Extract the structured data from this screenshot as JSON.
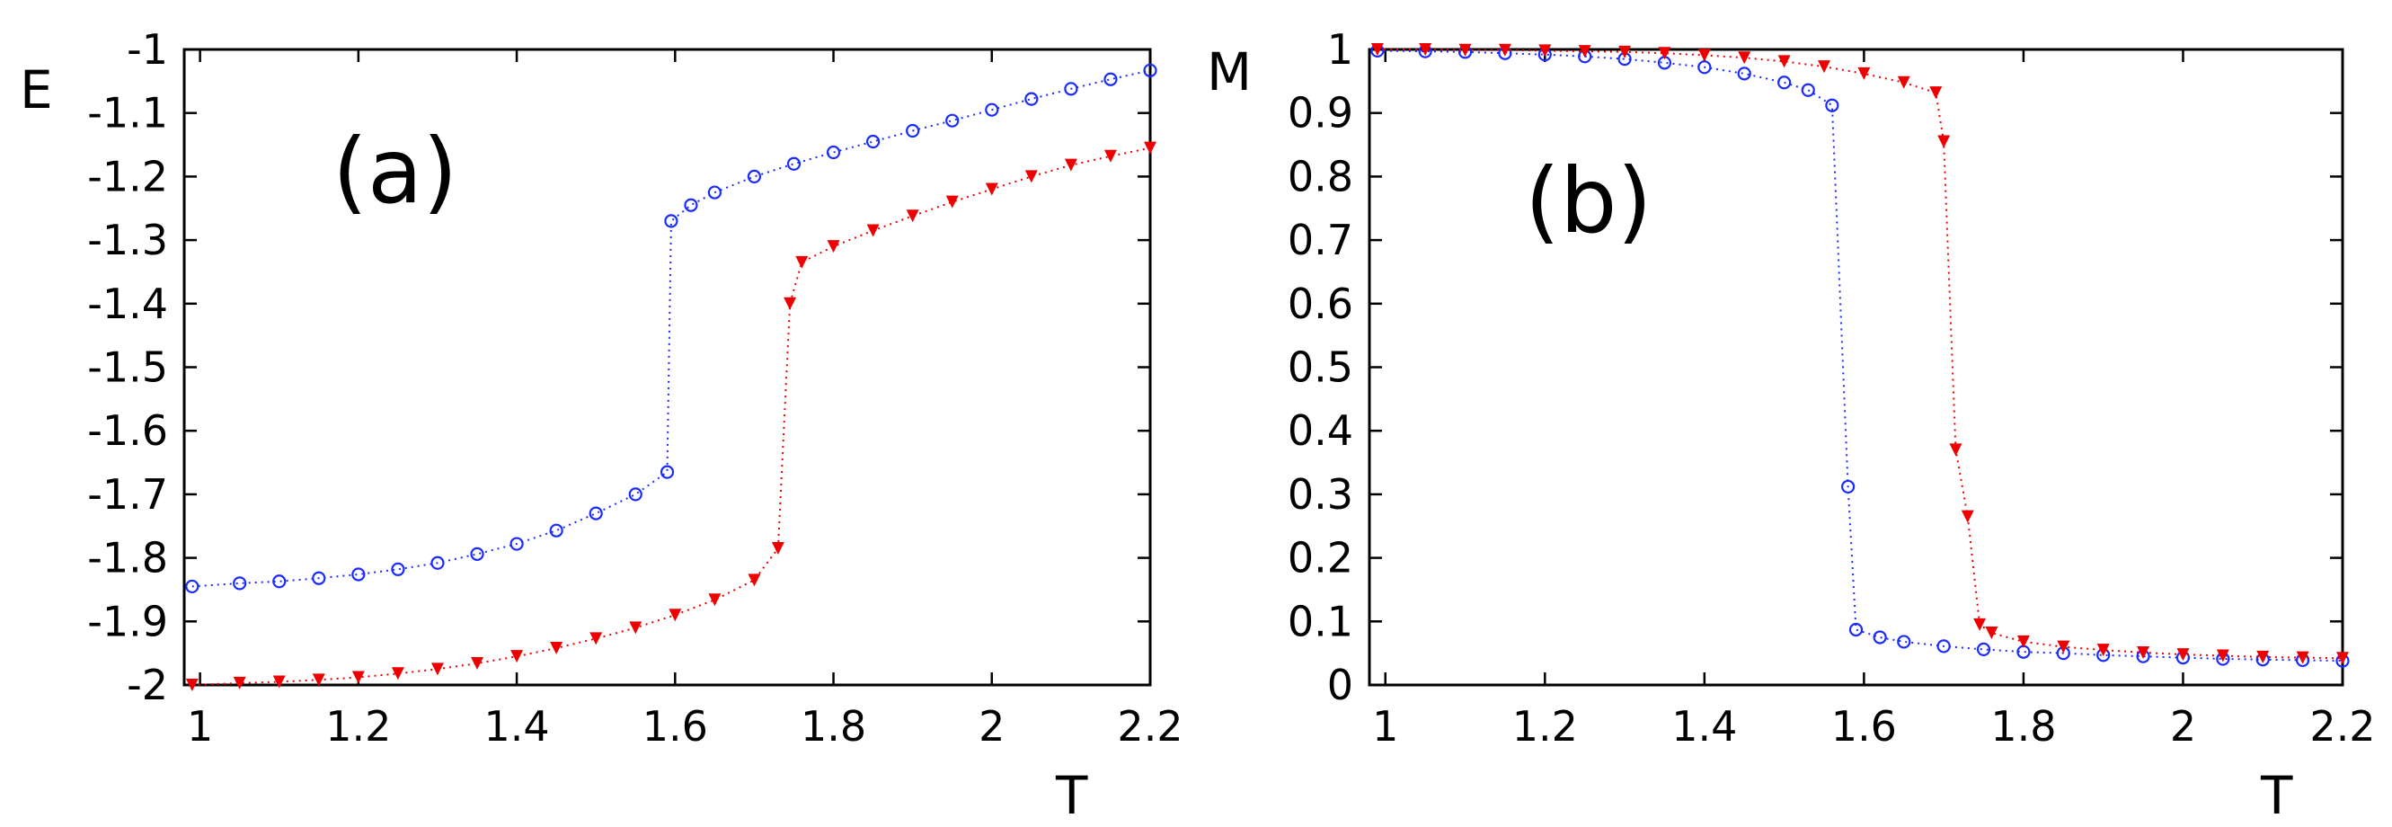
{
  "chart_data": [
    {
      "type": "scatter",
      "panel": "(a)",
      "ylabel": "E",
      "xlabel": "T",
      "xlim": [
        0.98,
        2.2
      ],
      "ylim": [
        -2,
        -1
      ],
      "xticks": [
        "1",
        "1.2",
        "1.4",
        "1.6",
        "1.8",
        "2",
        "2.2"
      ],
      "yticks": [
        "-1",
        "-1.1",
        "-1.2",
        "-1.3",
        "-1.4",
        "-1.5",
        "-1.6",
        "-1.7",
        "-1.8",
        "-1.9",
        "-2"
      ],
      "series": [
        {
          "name": "blue circles",
          "marker": "circle",
          "color": "#1a2bff",
          "points": [
            [
              0.99,
              -1.845
            ],
            [
              1.05,
              -1.84
            ],
            [
              1.1,
              -1.837
            ],
            [
              1.15,
              -1.832
            ],
            [
              1.2,
              -1.826
            ],
            [
              1.25,
              -1.818
            ],
            [
              1.3,
              -1.808
            ],
            [
              1.35,
              -1.794
            ],
            [
              1.4,
              -1.778
            ],
            [
              1.45,
              -1.757
            ],
            [
              1.5,
              -1.73
            ],
            [
              1.55,
              -1.7
            ],
            [
              1.59,
              -1.665
            ],
            [
              1.595,
              -1.27
            ],
            [
              1.62,
              -1.245
            ],
            [
              1.65,
              -1.225
            ],
            [
              1.7,
              -1.2
            ],
            [
              1.75,
              -1.18
            ],
            [
              1.8,
              -1.162
            ],
            [
              1.85,
              -1.145
            ],
            [
              1.9,
              -1.128
            ],
            [
              1.95,
              -1.112
            ],
            [
              2.0,
              -1.095
            ],
            [
              2.05,
              -1.078
            ],
            [
              2.1,
              -1.062
            ],
            [
              2.15,
              -1.047
            ],
            [
              2.2,
              -1.033
            ]
          ]
        },
        {
          "name": "red triangles",
          "marker": "triangle-down",
          "color": "#ee0000",
          "points": [
            [
              0.99,
              -2.0
            ],
            [
              1.05,
              -1.997
            ],
            [
              1.1,
              -1.995
            ],
            [
              1.15,
              -1.992
            ],
            [
              1.2,
              -1.988
            ],
            [
              1.25,
              -1.982
            ],
            [
              1.3,
              -1.975
            ],
            [
              1.35,
              -1.966
            ],
            [
              1.4,
              -1.955
            ],
            [
              1.45,
              -1.942
            ],
            [
              1.5,
              -1.927
            ],
            [
              1.55,
              -1.91
            ],
            [
              1.6,
              -1.89
            ],
            [
              1.65,
              -1.866
            ],
            [
              1.7,
              -1.835
            ],
            [
              1.73,
              -1.785
            ],
            [
              1.745,
              -1.4
            ],
            [
              1.76,
              -1.335
            ],
            [
              1.8,
              -1.31
            ],
            [
              1.85,
              -1.285
            ],
            [
              1.9,
              -1.262
            ],
            [
              1.95,
              -1.24
            ],
            [
              2.0,
              -1.22
            ],
            [
              2.05,
              -1.2
            ],
            [
              2.1,
              -1.182
            ],
            [
              2.15,
              -1.168
            ],
            [
              2.2,
              -1.155
            ]
          ]
        }
      ]
    },
    {
      "type": "scatter",
      "panel": "(b)",
      "ylabel": "M",
      "xlabel": "T",
      "xlim": [
        0.98,
        2.2
      ],
      "ylim": [
        0,
        1
      ],
      "xticks": [
        "1",
        "1.2",
        "1.4",
        "1.6",
        "1.8",
        "2",
        "2.2"
      ],
      "yticks": [
        "1",
        "0.9",
        "0.8",
        "0.7",
        "0.6",
        "0.5",
        "0.4",
        "0.3",
        "0.2",
        "0.1",
        "0"
      ],
      "series": [
        {
          "name": "blue circles",
          "marker": "circle",
          "color": "#1a2bff",
          "points": [
            [
              0.99,
              0.998
            ],
            [
              1.05,
              0.997
            ],
            [
              1.1,
              0.996
            ],
            [
              1.15,
              0.994
            ],
            [
              1.2,
              0.992
            ],
            [
              1.25,
              0.989
            ],
            [
              1.3,
              0.985
            ],
            [
              1.35,
              0.979
            ],
            [
              1.4,
              0.972
            ],
            [
              1.45,
              0.962
            ],
            [
              1.5,
              0.948
            ],
            [
              1.53,
              0.936
            ],
            [
              1.56,
              0.912
            ],
            [
              1.58,
              0.312
            ],
            [
              1.59,
              0.087
            ],
            [
              1.62,
              0.075
            ],
            [
              1.65,
              0.068
            ],
            [
              1.7,
              0.061
            ],
            [
              1.75,
              0.056
            ],
            [
              1.8,
              0.052
            ],
            [
              1.85,
              0.05
            ],
            [
              1.9,
              0.047
            ],
            [
              1.95,
              0.045
            ],
            [
              2.0,
              0.043
            ],
            [
              2.05,
              0.041
            ],
            [
              2.1,
              0.04
            ],
            [
              2.15,
              0.039
            ],
            [
              2.2,
              0.038
            ]
          ]
        },
        {
          "name": "red triangles",
          "marker": "triangle-down",
          "color": "#ee0000",
          "points": [
            [
              0.99,
              1.0
            ],
            [
              1.05,
              1.0
            ],
            [
              1.1,
              0.999
            ],
            [
              1.15,
              0.999
            ],
            [
              1.2,
              0.998
            ],
            [
              1.25,
              0.997
            ],
            [
              1.3,
              0.996
            ],
            [
              1.35,
              0.994
            ],
            [
              1.4,
              0.991
            ],
            [
              1.45,
              0.987
            ],
            [
              1.5,
              0.981
            ],
            [
              1.55,
              0.973
            ],
            [
              1.6,
              0.962
            ],
            [
              1.65,
              0.948
            ],
            [
              1.69,
              0.932
            ],
            [
              1.7,
              0.855
            ],
            [
              1.715,
              0.37
            ],
            [
              1.73,
              0.265
            ],
            [
              1.745,
              0.095
            ],
            [
              1.76,
              0.082
            ],
            [
              1.8,
              0.068
            ],
            [
              1.85,
              0.06
            ],
            [
              1.9,
              0.055
            ],
            [
              1.95,
              0.051
            ],
            [
              2.0,
              0.048
            ],
            [
              2.05,
              0.046
            ],
            [
              2.1,
              0.044
            ],
            [
              2.15,
              0.043
            ],
            [
              2.2,
              0.042
            ]
          ]
        }
      ]
    }
  ]
}
